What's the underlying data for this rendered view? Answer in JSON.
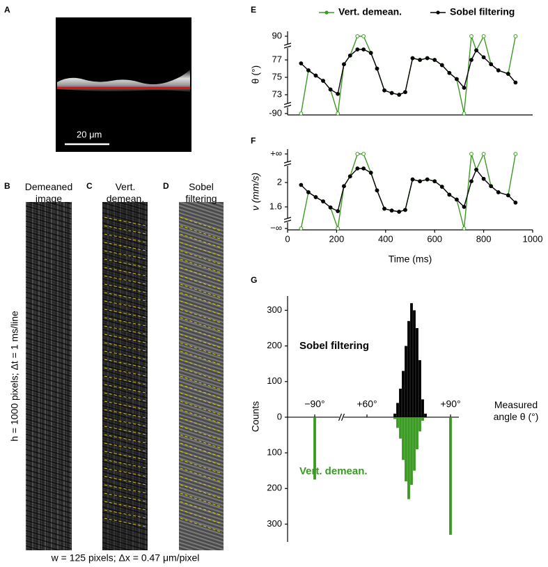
{
  "panel_labels": [
    "A",
    "B",
    "C",
    "D",
    "E",
    "F",
    "G"
  ],
  "image_a": {
    "scale_bar": "20 μm"
  },
  "kymographs": {
    "titles": [
      "Demeaned image",
      "Vert. demean.",
      "Sobel filtering"
    ],
    "height_label": "h = 1000 pixels; Δt = 1 ms/line",
    "width_label": "w = 125 pixels; Δx = 0.47 μm/pixel"
  },
  "chart_data": [
    {
      "type": "line",
      "y_label": "θ (°)",
      "x": [
        55,
        85,
        115,
        145,
        175,
        205,
        230,
        255,
        285,
        310,
        340,
        365,
        395,
        425,
        455,
        480,
        510,
        540,
        570,
        600,
        630,
        660,
        690,
        720,
        750,
        770,
        800,
        830,
        860,
        900,
        930
      ],
      "series": [
        {
          "name": "Vert. demean.",
          "color": "#3a9a22",
          "values": [
            -90,
            75.8,
            75.2,
            74.6,
            73.6,
            -90,
            76.5,
            77.5,
            90,
            90,
            77.8,
            76.0,
            73.5,
            73.2,
            73.0,
            73.3,
            77.2,
            77.0,
            77.2,
            77.0,
            76.4,
            75.5,
            74.8,
            -90,
            90,
            78.1,
            90,
            76.5,
            75.8,
            75.4,
            90
          ]
        },
        {
          "name": "Sobel filtering",
          "color": "#000000",
          "values": [
            76.6,
            75.8,
            75.2,
            74.6,
            73.6,
            73.1,
            76.5,
            77.5,
            78.2,
            78.2,
            77.8,
            76.0,
            73.5,
            73.2,
            73.0,
            73.3,
            77.2,
            77.0,
            77.2,
            77.0,
            76.4,
            75.5,
            74.8,
            73.8,
            77.0,
            78.1,
            77.3,
            76.5,
            75.8,
            75.4,
            74.4
          ]
        }
      ],
      "xlim": [
        0,
        1000
      ],
      "ylim": [
        -90,
        90
      ],
      "yticks": [
        90,
        77,
        75,
        73,
        -90
      ],
      "y_axis_break": true
    },
    {
      "type": "line",
      "y_label": "ν (mm/s)",
      "x_label": "Time (ms)",
      "x": [
        55,
        85,
        115,
        145,
        175,
        205,
        230,
        255,
        285,
        310,
        340,
        365,
        395,
        425,
        455,
        480,
        510,
        540,
        570,
        600,
        630,
        660,
        690,
        720,
        750,
        770,
        800,
        830,
        860,
        900,
        930
      ],
      "series": [
        {
          "color": "#3a9a22",
          "values": [
            "-Infinity",
            1.84,
            1.76,
            1.69,
            1.59,
            "-Infinity",
            1.94,
            2.1,
            "Infinity",
            "Infinity",
            2.16,
            1.87,
            1.57,
            1.54,
            1.52,
            1.55,
            2.05,
            2.02,
            2.05,
            2.02,
            1.93,
            1.8,
            1.72,
            "-Infinity",
            "Infinity",
            2.21,
            "Infinity",
            1.94,
            1.84,
            1.79,
            "Infinity"
          ]
        },
        {
          "color": "#000000",
          "values": [
            1.96,
            1.84,
            1.76,
            1.69,
            1.59,
            1.53,
            1.94,
            2.1,
            2.23,
            2.23,
            2.16,
            1.87,
            1.57,
            1.54,
            1.52,
            1.55,
            2.05,
            2.02,
            2.05,
            2.02,
            1.93,
            1.8,
            1.72,
            1.6,
            2.02,
            2.21,
            2.06,
            1.94,
            1.84,
            1.79,
            1.67
          ]
        }
      ],
      "xlim": [
        0,
        1000
      ],
      "xticks": [
        0,
        200,
        400,
        600,
        800,
        1000
      ],
      "ylim": [
        "-Infinity",
        "Infinity"
      ],
      "yticks": [
        {
          "value": "Infinity",
          "label": "+∞"
        },
        2,
        1.6,
        {
          "value": "-Infinity",
          "label": "−∞"
        }
      ],
      "y_axis_break": true
    },
    {
      "type": "bar",
      "y_label": "Counts",
      "x_label": "Measured angle θ (°)",
      "series": [
        {
          "name": "Sobel filtering",
          "color": "#000000",
          "x": [
            70,
            71,
            72,
            73,
            74,
            75,
            76,
            77,
            78,
            79,
            80,
            81
          ],
          "values": [
            10,
            40,
            80,
            130,
            200,
            270,
            320,
            300,
            250,
            160,
            50,
            10
          ]
        },
        {
          "name": "Vert. demean.",
          "color": "#3a9a22",
          "x": [
            -90,
            70,
            71,
            72,
            73,
            74,
            75,
            76,
            77,
            78,
            79,
            80,
            90
          ],
          "values": [
            -175,
            -5,
            -30,
            -60,
            -120,
            -180,
            -230,
            -190,
            -150,
            -90,
            -40,
            -10,
            -330
          ]
        }
      ],
      "xlim": [
        -100,
        93
      ],
      "xticks": [
        {
          "value": -90,
          "label": "−90°"
        },
        {
          "value": 60,
          "label": "+60°"
        },
        {
          "value": 90,
          "label": "+90°"
        }
      ],
      "x_axis_break": true,
      "ylim": [
        -350,
        340
      ],
      "yticks": [
        300,
        200,
        100,
        0,
        {
          "value": -100,
          "label": "100"
        },
        {
          "value": -200,
          "label": "200"
        },
        {
          "value": -300,
          "label": "300"
        }
      ]
    }
  ]
}
